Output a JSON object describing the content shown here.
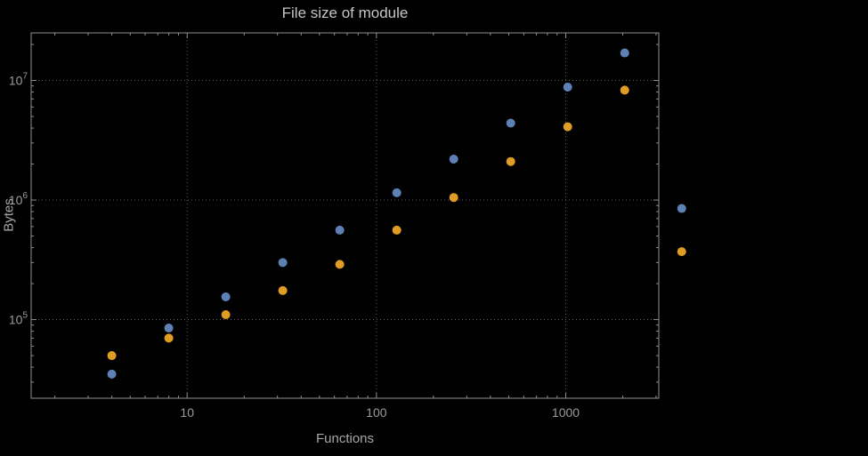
{
  "page": {
    "background": "#000000"
  },
  "chart_data": {
    "type": "scatter",
    "title": "File size of module",
    "xlabel": "Functions",
    "ylabel": "Bytes",
    "x_scale": "log",
    "y_scale": "log",
    "xlim": [
      1.5,
      3100
    ],
    "ylim": [
      22000,
      25000000
    ],
    "grid": true,
    "legend": "none",
    "x_ticks": [
      10,
      100,
      1000
    ],
    "x_tick_labels": [
      "10",
      "100",
      "1000"
    ],
    "y_ticks": [
      100000,
      1000000,
      10000000
    ],
    "y_tick_labels": [
      {
        "base": "10",
        "exp": "5"
      },
      {
        "base": "10",
        "exp": "6"
      },
      {
        "base": "10",
        "exp": "7"
      }
    ],
    "series": [
      {
        "name": "series-1-blue",
        "color": "#5E81B5",
        "x": [
          4,
          8,
          16,
          32,
          64,
          128,
          256,
          512,
          1024,
          2048,
          4096
        ],
        "y": [
          35000,
          85000,
          155000,
          300000,
          560000,
          1150000,
          2200000,
          4400000,
          8800000,
          17000000,
          850000
        ]
      },
      {
        "name": "series-2-orange",
        "color": "#E19C24",
        "x": [
          4,
          8,
          16,
          32,
          64,
          128,
          256,
          512,
          1024,
          2048,
          4096
        ],
        "y": [
          50000,
          70000,
          110000,
          175000,
          290000,
          560000,
          1050000,
          2100000,
          4100000,
          8300000,
          370000
        ]
      }
    ],
    "style": {
      "frame_color": "#8f8f8f",
      "grid_color": "#5f5f5f",
      "tick_label_color": "#9c9c9c",
      "title_color": "#c6c6c6",
      "axis_label_color": "#a8a8a8",
      "marker_radius": 5
    }
  }
}
